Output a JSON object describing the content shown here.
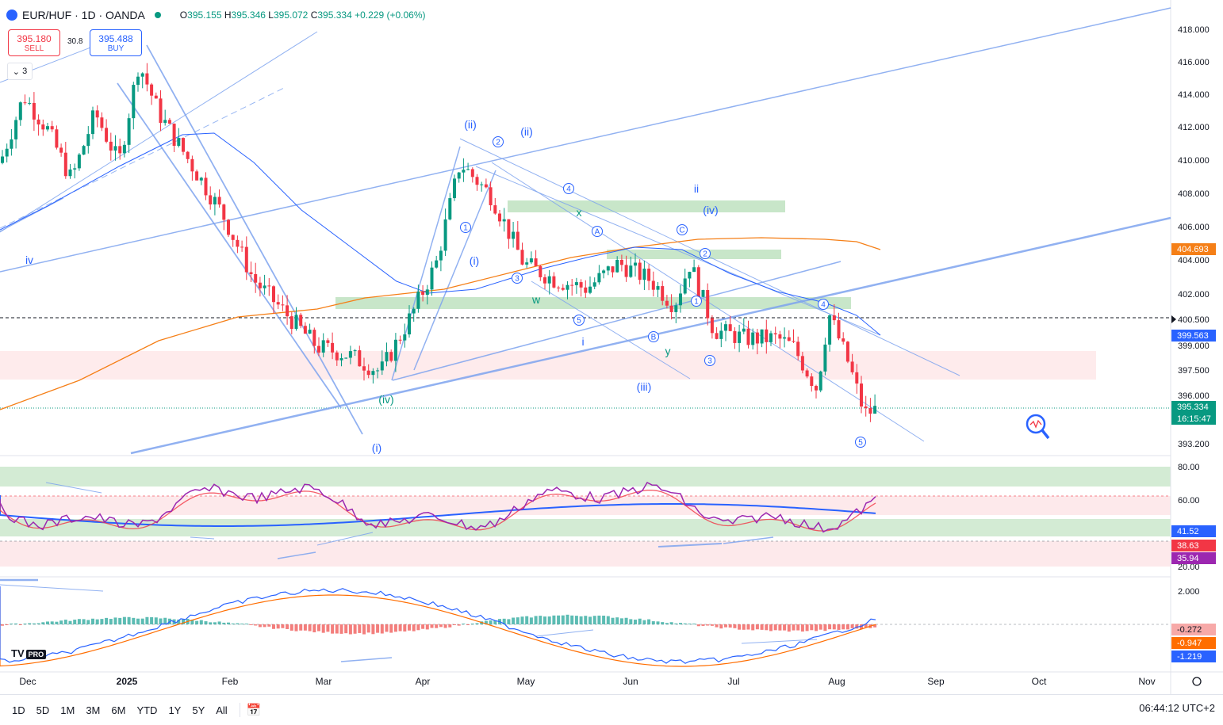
{
  "header": {
    "symbol": "EUR/HUF · 1D · OANDA",
    "open": "395.155",
    "high": "395.346",
    "low": "395.072",
    "close": "395.334",
    "change": "+0.229 (+0.06%)",
    "labels": {
      "o": "O",
      "h": "H",
      "l": "L",
      "c": "C"
    }
  },
  "trade": {
    "sell_price": "395.180",
    "sell_label": "SELL",
    "buy_price": "395.488",
    "buy_label": "BUY",
    "spread": "30.8"
  },
  "indicator_toggle": "3",
  "price_axis": {
    "labels": [
      "418.000",
      "416.000",
      "414.000",
      "412.000",
      "410.000",
      "408.000",
      "406.000",
      "404.000",
      "402.000",
      "400.500",
      "399.000",
      "397.500",
      "396.000",
      "393.200"
    ],
    "badges": [
      {
        "value": "404.693",
        "color": "#f57f17"
      },
      {
        "value": "399.563",
        "color": "#2962ff"
      },
      {
        "value": "395.334",
        "color": "#089981"
      },
      {
        "value": "16:15:47",
        "color": "#089981"
      }
    ],
    "marker": "400.500"
  },
  "rsi_axis": {
    "labels": [
      "80.00",
      "60.00",
      "20.00"
    ],
    "badges": [
      {
        "value": "41.52",
        "color": "#2962ff"
      },
      {
        "value": "38.63",
        "color": "#f23645"
      },
      {
        "value": "35.94",
        "color": "#9c27b0"
      }
    ]
  },
  "macd_axis": {
    "labels": [
      "2.000"
    ],
    "badges": [
      {
        "value": "-0.272",
        "color": "#f7a9a8"
      },
      {
        "value": "-0.947",
        "color": "#ff6d00"
      },
      {
        "value": "-1.219",
        "color": "#2962ff"
      }
    ]
  },
  "time_axis": [
    "Dec",
    "2025",
    "Feb",
    "Mar",
    "Apr",
    "May",
    "Jun",
    "Jul",
    "Aug",
    "Sep",
    "Oct",
    "Nov"
  ],
  "wave_labels": [
    {
      "t": "(ii)",
      "c": "#2962ff"
    },
    {
      "t": "(ii)",
      "c": "#2962ff"
    },
    {
      "t": "(iv)",
      "c": "#2962ff"
    },
    {
      "t": "(iv)",
      "c": "#089981"
    },
    {
      "t": "(iii)",
      "c": "#2962ff"
    },
    {
      "t": "(i)",
      "c": "#2962ff"
    },
    {
      "t": "(i)",
      "c": "#2962ff"
    },
    {
      "t": "iv",
      "c": "#2962ff"
    },
    {
      "t": "ii",
      "c": "#2962ff"
    },
    {
      "t": "i",
      "c": "#2962ff"
    },
    {
      "t": "x",
      "c": "#089981"
    },
    {
      "t": "w",
      "c": "#089981"
    },
    {
      "t": "y",
      "c": "#089981"
    }
  ],
  "circled_labels": [
    "2",
    "4",
    "1",
    "3",
    "5",
    "A",
    "B",
    "C",
    "2",
    "1",
    "3",
    "4",
    "5"
  ],
  "bottom_bar": {
    "timeframes": [
      "1D",
      "5D",
      "1M",
      "3M",
      "6M",
      "YTD",
      "1Y",
      "5Y",
      "All"
    ],
    "clock": "06:44:12 UTC+2"
  },
  "branding": {
    "logo": "TV",
    "badge": "PRO"
  },
  "colors": {
    "up": "#089981",
    "down": "#f23645",
    "ma_blue": "#2962ff",
    "ma_orange": "#f57f17",
    "channel": "#7ea4ef",
    "zone_green": "#c8e6c9",
    "zone_red": "#fde4e6",
    "rsi": "#9c27b0"
  }
}
